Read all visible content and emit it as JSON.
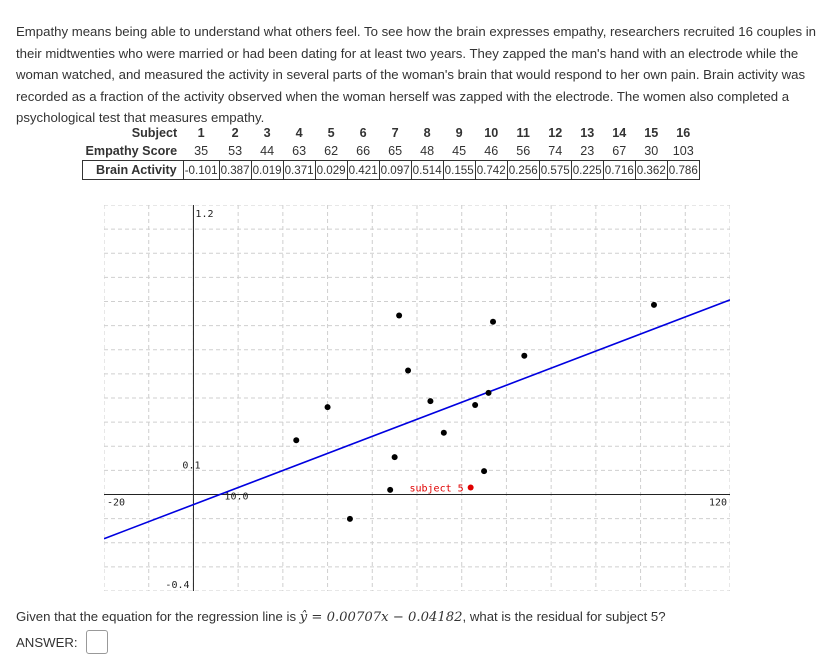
{
  "intro_text": "Empathy means being able to understand what others feel. To see how the brain expresses empathy, researchers recruited 16 couples in their midtwenties who were married or had been dating for at least two years. They zapped the man's hand with an electrode while the woman watched, and measured the activity in several parts of the woman's brain that would respond to her own pain. Brain activity was recorded as a fraction of the activity observed when the woman herself was zapped with the electrode. The women also completed a psychological test that measures empathy.",
  "table": {
    "row_labels": [
      "Subject",
      "Empathy Score",
      "Brain Activity"
    ],
    "subjects": [
      "1",
      "2",
      "3",
      "4",
      "5",
      "6",
      "7",
      "8",
      "9",
      "10",
      "11",
      "12",
      "13",
      "14",
      "15",
      "16"
    ],
    "empathy_scores": [
      "35",
      "53",
      "44",
      "63",
      "62",
      "66",
      "65",
      "48",
      "45",
      "46",
      "56",
      "74",
      "23",
      "67",
      "30",
      "103"
    ],
    "brain_activity": [
      "-0.101",
      "0.387",
      "0.019",
      "0.371",
      "0.029",
      "0.421",
      "0.097",
      "0.514",
      "0.155",
      "0.742",
      "0.256",
      "0.575",
      "0.225",
      "0.716",
      "0.362",
      "0.786"
    ]
  },
  "chart_data": {
    "type": "scatter",
    "title": "",
    "xlabel": "",
    "ylabel": "",
    "xlim": [
      -20,
      120
    ],
    "ylim": [
      -0.4,
      1.2
    ],
    "tick_labels": {
      "x_origin": "10.0",
      "x_min": "-20",
      "x_max": "120",
      "y_top": "1.2",
      "y_mid": "0.1",
      "y_bottom": "-0.4"
    },
    "points": [
      {
        "subject": 1,
        "x": 35,
        "y": -0.101
      },
      {
        "subject": 2,
        "x": 53,
        "y": 0.387
      },
      {
        "subject": 3,
        "x": 44,
        "y": 0.019
      },
      {
        "subject": 4,
        "x": 63,
        "y": 0.371
      },
      {
        "subject": 5,
        "x": 62,
        "y": 0.029
      },
      {
        "subject": 6,
        "x": 66,
        "y": 0.421
      },
      {
        "subject": 7,
        "x": 65,
        "y": 0.097
      },
      {
        "subject": 8,
        "x": 48,
        "y": 0.514
      },
      {
        "subject": 9,
        "x": 45,
        "y": 0.155
      },
      {
        "subject": 10,
        "x": 46,
        "y": 0.742
      },
      {
        "subject": 11,
        "x": 56,
        "y": 0.256
      },
      {
        "subject": 12,
        "x": 74,
        "y": 0.575
      },
      {
        "subject": 13,
        "x": 23,
        "y": 0.225
      },
      {
        "subject": 14,
        "x": 67,
        "y": 0.716
      },
      {
        "subject": 15,
        "x": 30,
        "y": 0.362
      },
      {
        "subject": 16,
        "x": 103,
        "y": 0.786
      }
    ],
    "highlight": {
      "subject": 5,
      "label": "subject 5",
      "color": "#e00000"
    },
    "regression": {
      "slope": 0.00707,
      "intercept": -0.04182,
      "color": "#0000e0"
    },
    "point_color": "#000000",
    "grid": true
  },
  "question": {
    "prefix": "Given that the equation for the regression line is ",
    "equation": "ŷ = 0.00707x − 0.04182",
    "suffix": ", what is the residual for subject 5?"
  },
  "answer_label": "ANSWER:"
}
